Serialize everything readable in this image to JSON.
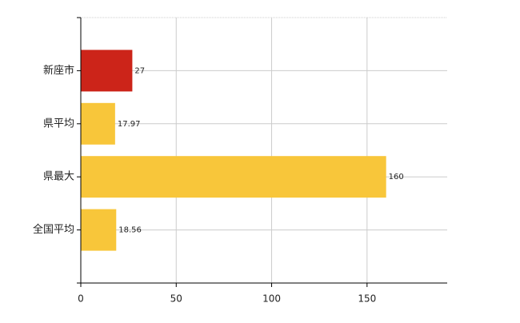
{
  "chart_data": {
    "type": "bar",
    "orientation": "horizontal",
    "categories": [
      "新座市",
      "県平均",
      "県最大",
      "全国平均"
    ],
    "values": [
      27,
      17.97,
      160,
      18.56
    ],
    "colors": [
      "#cc2419",
      "#f8c63a",
      "#f8c63a",
      "#f8c63a"
    ],
    "xlim": [
      0,
      192
    ],
    "xticks": [
      0,
      50,
      100,
      150
    ],
    "grid": true
  }
}
